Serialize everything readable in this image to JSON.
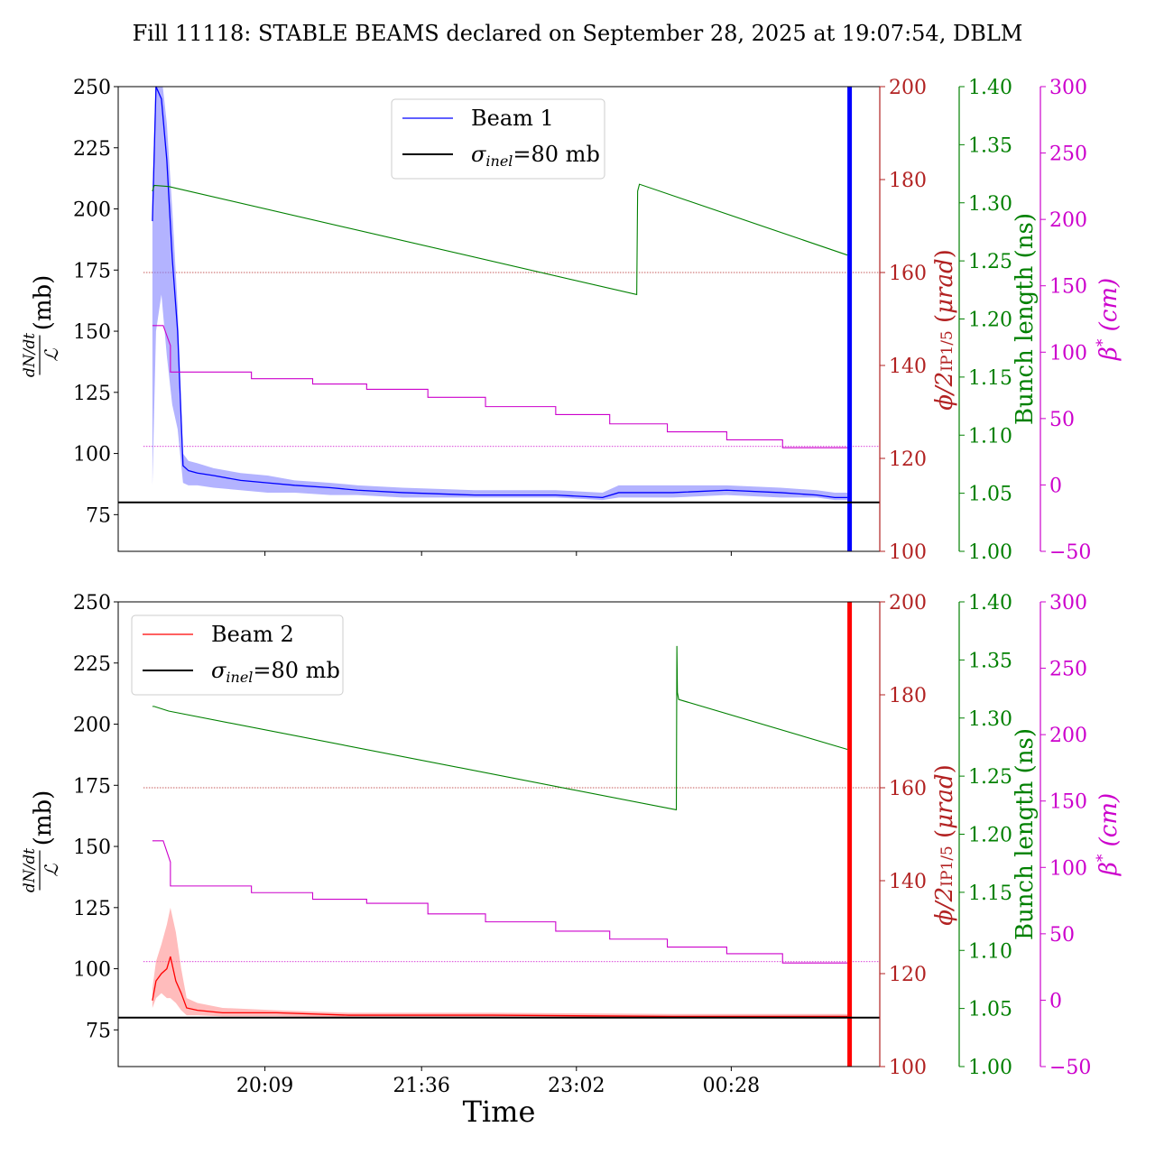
{
  "title": "Fill 11118: STABLE BEAMS declared on September 28, 2025 at 19:07:54, DBLM",
  "colors": {
    "beam1": "#0000ff",
    "beam1_band": "#8080ff",
    "beam2": "#ff0000",
    "beam2_band": "#ff9090",
    "crossing": "#b22222",
    "bunch": "#008000",
    "beta": "#cc00cc",
    "ref": "#000000"
  },
  "chart_data": [
    {
      "type": "line",
      "panel": "top",
      "x_ticks": [
        "20:09",
        "21:36",
        "23:02",
        "00:28"
      ],
      "x_tick_values": [
        73.5,
        160.5,
        246.5,
        332.5
      ],
      "xlim": [
        -8,
        415
      ],
      "ylabel": "dN/dt / 𝓛 (mb)",
      "ylim": [
        60,
        250
      ],
      "y_ticks": [
        75,
        100,
        125,
        150,
        175,
        200,
        225,
        250
      ],
      "legend": {
        "placement": "upper center",
        "entries": [
          "Beam 1",
          "σinel=80 mb"
        ]
      },
      "reference": {
        "label": "σinel=80 mb",
        "value": 80
      },
      "right_axes": [
        {
          "name": "crossing",
          "label": "φ/2IP1/5 (μrad)",
          "ylim": [
            100,
            200
          ],
          "ticks": [
            100,
            120,
            140,
            160,
            180,
            200
          ]
        },
        {
          "name": "bunch",
          "label": "Bunch length (ns)",
          "ylim": [
            1.0,
            1.4
          ],
          "ticks": [
            "1.00",
            "1.05",
            "1.10",
            "1.15",
            "1.20",
            "1.25",
            "1.30",
            "1.35",
            "1.40"
          ]
        },
        {
          "name": "beta",
          "label": "β* (cm)",
          "ylim": [
            -50,
            300
          ],
          "ticks": [
            -50,
            0,
            50,
            100,
            150,
            200,
            250,
            300
          ]
        }
      ],
      "series": [
        {
          "name": "Beam 1",
          "axis": "left",
          "x": [
            11,
            13,
            16,
            19,
            22,
            25,
            28,
            31,
            36,
            45,
            60,
            75,
            90,
            110,
            125,
            150,
            190,
            235,
            261,
            270,
            300,
            330,
            360,
            380,
            390,
            397
          ],
          "y": [
            195,
            250,
            245,
            220,
            180,
            150,
            95,
            93,
            92,
            91,
            89,
            88,
            87,
            86,
            85,
            84,
            83,
            83,
            82,
            84,
            84,
            85,
            84,
            83,
            82,
            82
          ],
          "band_high": [
            205,
            258,
            255,
            235,
            200,
            160,
            100,
            97,
            96,
            94,
            92,
            91,
            89,
            88,
            87,
            86,
            85,
            85,
            84,
            87,
            87,
            87,
            86,
            85,
            84,
            84
          ],
          "band_low": [
            87,
            150,
            165,
            140,
            120,
            110,
            88,
            87,
            87,
            86,
            85,
            84,
            84,
            83,
            83,
            82,
            82,
            82,
            81,
            82,
            82,
            83,
            82,
            82,
            81,
            81
          ]
        },
        {
          "name": "φ/2IP1/5",
          "axis": "crossing",
          "x": [
            11,
            397
          ],
          "y": [
            160,
            160
          ]
        },
        {
          "name": "Bunch length",
          "axis": "bunch",
          "x": [
            11,
            12,
            20,
            280,
            280.5,
            281.5,
            397
          ],
          "y": [
            1.31,
            1.315,
            1.314,
            1.221,
            1.31,
            1.316,
            1.255
          ]
        },
        {
          "name": "β*",
          "axis": "beta",
          "x": [
            11,
            17,
            21,
            21,
            66,
            66,
            100,
            100,
            130,
            130,
            164,
            164,
            196,
            196,
            235,
            235,
            265,
            265,
            297,
            297,
            330,
            330,
            361,
            361,
            397
          ],
          "y": [
            120,
            120,
            105,
            85,
            85,
            80,
            80,
            76,
            76,
            72,
            72,
            66,
            66,
            59,
            59,
            53,
            53,
            46,
            46,
            40,
            40,
            34,
            34,
            28,
            28
          ]
        },
        {
          "name": "β* reference",
          "axis": "beta",
          "x": [
            11,
            397
          ],
          "y": [
            29,
            29
          ]
        }
      ],
      "vertical_band": {
        "x": 398,
        "color": "beam1"
      }
    },
    {
      "type": "line",
      "panel": "bottom",
      "xlabel": "Time",
      "x_ticks": [
        "20:09",
        "21:36",
        "23:02",
        "00:28"
      ],
      "x_tick_values": [
        73.5,
        160.5,
        246.5,
        332.5
      ],
      "xlim": [
        -8,
        415
      ],
      "ylabel": "dN/dt / 𝓛 (mb)",
      "ylim": [
        60,
        250
      ],
      "y_ticks": [
        75,
        100,
        125,
        150,
        175,
        200,
        225,
        250
      ],
      "legend": {
        "placement": "upper left",
        "entries": [
          "Beam 2",
          "σinel=80 mb"
        ]
      },
      "reference": {
        "label": "σinel=80 mb",
        "value": 80
      },
      "right_axes": [
        {
          "name": "crossing",
          "label": "φ/2IP1/5 (μrad)",
          "ylim": [
            100,
            200
          ],
          "ticks": [
            100,
            120,
            140,
            160,
            180,
            200
          ]
        },
        {
          "name": "bunch",
          "label": "Bunch length (ns)",
          "ylim": [
            1.0,
            1.4
          ],
          "ticks": [
            "1.00",
            "1.05",
            "1.10",
            "1.15",
            "1.20",
            "1.25",
            "1.30",
            "1.35",
            "1.40"
          ]
        },
        {
          "name": "beta",
          "label": "β* (cm)",
          "ylim": [
            -50,
            300
          ],
          "ticks": [
            -50,
            0,
            50,
            100,
            150,
            200,
            250,
            300
          ]
        }
      ],
      "series": [
        {
          "name": "Beam 2",
          "axis": "left",
          "x": [
            11,
            13,
            16,
            19,
            21,
            24,
            27,
            30,
            36,
            50,
            80,
            120,
            200,
            300,
            397
          ],
          "y": [
            87,
            95,
            98,
            100,
            105,
            95,
            90,
            84,
            83,
            82,
            82,
            81,
            81,
            80.5,
            80.5
          ],
          "band_high": [
            92,
            103,
            110,
            118,
            125,
            115,
            100,
            88,
            86,
            84,
            83,
            82,
            82,
            81.5,
            81.5
          ],
          "band_low": [
            84,
            88,
            90,
            88,
            88,
            86,
            83,
            81,
            81,
            80.5,
            80.5,
            80,
            80,
            80,
            80
          ]
        },
        {
          "name": "φ/2IP1/5",
          "axis": "crossing",
          "x": [
            11,
            397
          ],
          "y": [
            160,
            160
          ]
        },
        {
          "name": "Bunch length",
          "axis": "bunch",
          "x": [
            11,
            12,
            20,
            302,
            302.3,
            302.6,
            303.3,
            397
          ],
          "y": [
            1.31,
            1.31,
            1.306,
            1.221,
            1.362,
            1.322,
            1.316,
            1.273
          ]
        },
        {
          "name": "β*",
          "axis": "beta",
          "x": [
            11,
            17,
            21,
            21,
            66,
            66,
            100,
            100,
            130,
            130,
            164,
            164,
            196,
            196,
            235,
            235,
            265,
            265,
            297,
            297,
            330,
            330,
            361,
            361,
            397
          ],
          "y": [
            120,
            120,
            104,
            86,
            86,
            81,
            81,
            76,
            76,
            73,
            73,
            65,
            65,
            59,
            59,
            52,
            52,
            46,
            46,
            40,
            40,
            35,
            35,
            28,
            28
          ]
        },
        {
          "name": "β* reference",
          "axis": "beta",
          "x": [
            11,
            397
          ],
          "y": [
            29,
            29
          ]
        }
      ],
      "vertical_band": {
        "x": 398,
        "color": "beam2"
      }
    }
  ]
}
